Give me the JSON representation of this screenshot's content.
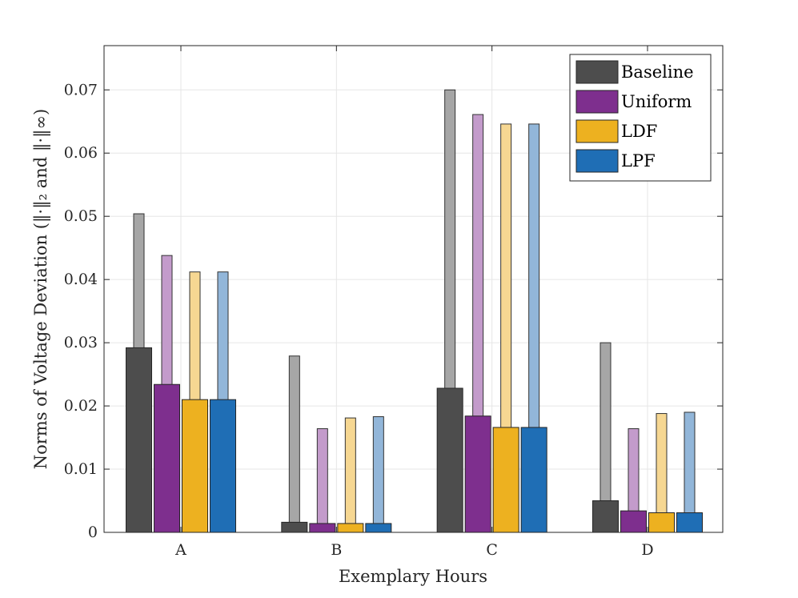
{
  "chart_data": {
    "type": "bar",
    "title": "",
    "xlabel": "Exemplary Hours",
    "ylabel": "Norms of Voltage Deviation (‖·‖₂ and ‖·‖∞)",
    "categories": [
      "A",
      "B",
      "C",
      "D"
    ],
    "ylim": [
      0,
      0.077
    ],
    "yticks": [
      0,
      0.01,
      0.02,
      0.03,
      0.04,
      0.05,
      0.06,
      0.07
    ],
    "ytick_labels": [
      "0",
      "0.01",
      "0.02",
      "0.03",
      "0.04",
      "0.05",
      "0.06",
      "0.07"
    ],
    "grid": true,
    "legend_position": "top-right",
    "series": [
      {
        "name": "Baseline",
        "color": "#4d4d4d",
        "light_color": "#a6a6a6",
        "values_l2": [
          0.0292,
          0.0016,
          0.0228,
          0.005
        ],
        "values_inf": [
          0.0504,
          0.0279,
          0.07,
          0.03
        ]
      },
      {
        "name": "Uniform",
        "color": "#7e2f8e",
        "light_color": "#c39bcb",
        "values_l2": [
          0.0234,
          0.0014,
          0.0184,
          0.0034
        ],
        "values_inf": [
          0.0438,
          0.0164,
          0.0661,
          0.0164
        ]
      },
      {
        "name": "LDF",
        "color": "#edb120",
        "light_color": "#f6d792",
        "values_l2": [
          0.021,
          0.0014,
          0.0166,
          0.0031
        ],
        "values_inf": [
          0.0412,
          0.0181,
          0.0646,
          0.0188
        ]
      },
      {
        "name": "LPF",
        "color": "#1f6eb5",
        "light_color": "#92b6d9",
        "values_l2": [
          0.021,
          0.0014,
          0.0166,
          0.0031
        ],
        "values_inf": [
          0.0412,
          0.0183,
          0.0646,
          0.019
        ]
      }
    ]
  }
}
